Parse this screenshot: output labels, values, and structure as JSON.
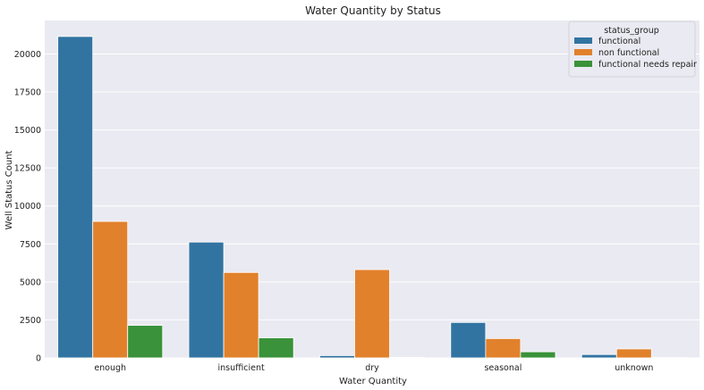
{
  "chart_data": {
    "type": "bar",
    "title": "Water Quantity by Status",
    "xlabel": "Water Quantity",
    "ylabel": "Well Status Count",
    "categories": [
      "enough",
      "insufficient",
      "dry",
      "seasonal",
      "unknown"
    ],
    "series": [
      {
        "name": "functional",
        "values": [
          21150,
          7620,
          150,
          2330,
          220
        ],
        "color": "#3274a1"
      },
      {
        "name": "non functional",
        "values": [
          8980,
          5620,
          5810,
          1270,
          590
        ],
        "color": "#e1812c"
      },
      {
        "name": "functional needs repair",
        "values": [
          2140,
          1320,
          35,
          400,
          25
        ],
        "color": "#3a923a"
      }
    ],
    "ylim": [
      0,
      22200
    ],
    "yticks": [
      0,
      2500,
      5000,
      7500,
      10000,
      12500,
      15000,
      17500,
      20000
    ],
    "grid": true,
    "background": "#eaeaf2",
    "legend": {
      "title": "status_group",
      "placement": "top-right"
    }
  }
}
